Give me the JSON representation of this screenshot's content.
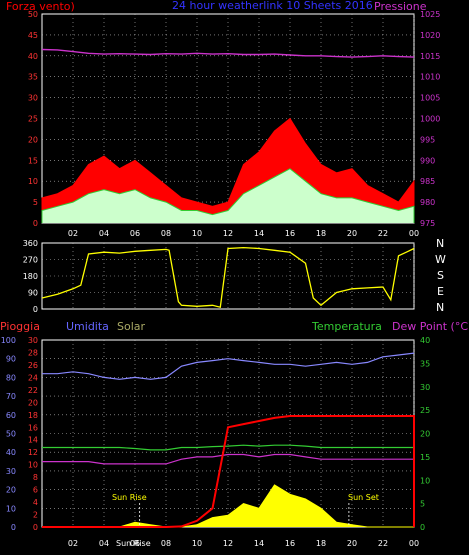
{
  "header": {
    "left_label": "Forza vento)",
    "title": "24 hour weatherlink 10 Sheets 2016",
    "right_label": "Pressione"
  },
  "colors": {
    "background": "#000000",
    "red": "#ff0000",
    "blue": "#3333ff",
    "magenta": "#cc33cc",
    "green": "#33cc33",
    "yellow": "#ffff00",
    "white": "#ffffff",
    "lightblue": "#8888ff",
    "pale_green": "#ccffcc"
  },
  "bottom_panel": {
    "rain_label": "Pioggia",
    "humidity_label": "Umidita",
    "solar_label": "Solar",
    "temperature_label": "Temperatura",
    "dewpoint_label": "Dew Point (°C)",
    "sunrise_label": "Sun Rise",
    "sunset_label": "Sun Set",
    "bottom_note": "Sun Rise"
  },
  "direction_panel": {
    "compass": [
      "N",
      "W",
      "S",
      "E",
      "N"
    ]
  },
  "chart_data": [
    {
      "type": "area",
      "name_key": "wind",
      "x_ticks": [
        "02",
        "04",
        "06",
        "08",
        "10",
        "12",
        "14",
        "16",
        "18",
        "20",
        "22",
        "00"
      ],
      "left_ticks": [
        "0",
        "5",
        "10",
        "15",
        "20",
        "25",
        "30",
        "35",
        "40",
        "45",
        "50"
      ],
      "right_ticks": [
        "975",
        "980",
        "985",
        "990",
        "995",
        "1000",
        "1005",
        "1010",
        "1015",
        "1020",
        "1025"
      ],
      "ylim_left": [
        0,
        50
      ],
      "ylim_right": [
        975,
        1025
      ],
      "x_hours": [
        0,
        1,
        2,
        3,
        4,
        5,
        6,
        7,
        8,
        9,
        10,
        11,
        12,
        13,
        14,
        15,
        16,
        17,
        18,
        19,
        20,
        21,
        22,
        23,
        24
      ],
      "series": [
        {
          "key": "gust",
          "values": [
            6,
            7,
            9,
            14,
            16,
            13,
            15,
            12,
            9,
            6,
            5,
            4,
            5,
            14,
            17,
            22,
            25,
            19,
            14,
            12,
            13,
            9,
            7,
            5,
            10
          ]
        },
        {
          "key": "speed",
          "values": [
            3,
            4,
            5,
            7,
            8,
            7,
            8,
            6,
            5,
            3,
            3,
            2,
            3,
            7,
            9,
            11,
            13,
            10,
            7,
            6,
            6,
            5,
            4,
            3,
            4
          ]
        },
        {
          "key": "pressure",
          "values": [
            1016.5,
            1016.4,
            1016.0,
            1015.6,
            1015.4,
            1015.5,
            1015.4,
            1015.3,
            1015.5,
            1015.4,
            1015.6,
            1015.4,
            1015.5,
            1015.3,
            1015.3,
            1015.4,
            1015.2,
            1015.0,
            1015.0,
            1014.8,
            1014.7,
            1014.8,
            1015.0,
            1014.8,
            1014.7
          ]
        }
      ]
    },
    {
      "type": "line",
      "name_key": "wind_direction",
      "left_ticks": [
        "0",
        "90",
        "180",
        "270",
        "360"
      ],
      "ylim": [
        0,
        360
      ],
      "x_hours": [
        0,
        1,
        2,
        2.5,
        3,
        4,
        5,
        6,
        7,
        8,
        8.2,
        8.8,
        9,
        10,
        11,
        11.5,
        12,
        13,
        14,
        15,
        16,
        17,
        17.5,
        18,
        19,
        20,
        21,
        22,
        22.5,
        23,
        23.5,
        24
      ],
      "values": [
        60,
        80,
        110,
        130,
        300,
        310,
        305,
        315,
        320,
        325,
        320,
        40,
        20,
        15,
        20,
        10,
        330,
        335,
        330,
        320,
        310,
        250,
        60,
        20,
        90,
        110,
        115,
        120,
        50,
        290,
        310,
        330
      ]
    },
    {
      "type": "line",
      "name_key": "climate",
      "left_ticks_rain": [
        "0",
        "2",
        "4",
        "6",
        "8",
        "10",
        "12",
        "14",
        "16",
        "18",
        "20",
        "22",
        "24",
        "26",
        "28",
        "30"
      ],
      "left_ticks_humidity": [
        "0",
        "10",
        "20",
        "30",
        "40",
        "50",
        "60",
        "70",
        "80",
        "90",
        "100"
      ],
      "right_ticks": [
        "0",
        "5",
        "10",
        "15",
        "20",
        "25",
        "30",
        "35",
        "40"
      ],
      "ylim_rain": [
        0,
        30
      ],
      "ylim_humidity": [
        0,
        100
      ],
      "ylim_temperature": [
        0,
        40
      ],
      "x_hours": [
        0,
        1,
        2,
        3,
        4,
        5,
        6,
        7,
        8,
        9,
        10,
        11,
        12,
        13,
        14,
        15,
        16,
        17,
        18,
        19,
        20,
        21,
        22,
        23,
        24
      ],
      "series": [
        {
          "key": "humidity",
          "values": [
            82,
            82,
            83,
            82,
            80,
            79,
            80,
            79,
            80,
            86,
            88,
            89,
            90,
            89,
            88,
            87,
            87,
            86,
            87,
            88,
            87,
            88,
            91,
            92,
            93
          ]
        },
        {
          "key": "temperature",
          "values": [
            17,
            17,
            17,
            17,
            17,
            17,
            16.8,
            16.5,
            16.5,
            17,
            17,
            17.2,
            17.3,
            17.5,
            17.3,
            17.5,
            17.5,
            17.3,
            17,
            17,
            17,
            17,
            17,
            17,
            17
          ]
        },
        {
          "key": "dewpoint",
          "values": [
            14,
            14,
            14,
            14,
            13.5,
            13.5,
            13.5,
            13.5,
            13.5,
            14.5,
            15,
            15,
            15.5,
            15.5,
            15,
            15.5,
            15.5,
            15,
            14.5,
            14.5,
            14.5,
            14.5,
            14.5,
            14.5,
            14.5
          ]
        },
        {
          "key": "rain",
          "values": [
            0,
            0,
            0,
            0,
            0,
            0,
            0,
            0,
            0,
            0.1,
            1,
            3,
            16,
            16.5,
            17,
            17.5,
            17.8,
            17.8,
            17.8,
            17.8,
            17.8,
            17.8,
            17.8,
            17.8,
            17.8
          ]
        },
        {
          "key": "solar",
          "values": [
            0,
            0,
            0,
            0,
            0,
            0,
            1,
            0.5,
            0,
            0,
            0.5,
            2,
            2.5,
            5,
            4,
            9,
            7,
            6,
            4,
            1,
            0.5,
            0,
            0,
            0,
            0
          ]
        }
      ]
    }
  ]
}
